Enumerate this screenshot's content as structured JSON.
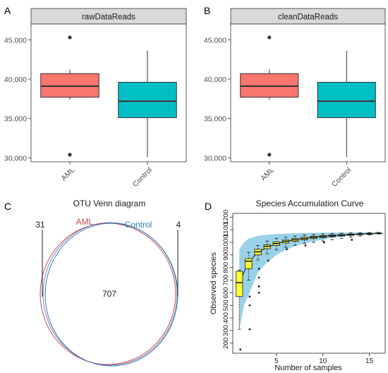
{
  "panel_labels": [
    "A",
    "B",
    "C",
    "D"
  ],
  "chart_data": [
    {
      "type": "box",
      "panel": "A",
      "title": "rawDataReads",
      "categories": [
        "AML",
        "Control"
      ],
      "ylim": [
        29500,
        47000
      ],
      "yticks": [
        "30,000",
        "35,000",
        "40,000",
        "45,000"
      ],
      "ytick_values": [
        30000,
        35000,
        40000,
        45000
      ],
      "boxes": [
        {
          "name": "AML",
          "whisker_low": 37400,
          "q1": 37700,
          "median": 39100,
          "q3": 40700,
          "whisker_high": 41200,
          "outliers": [
            45300,
            30400
          ],
          "color": "#F8766D"
        },
        {
          "name": "Control",
          "whisker_low": 30100,
          "q1": 35100,
          "median": 37200,
          "q3": 39600,
          "whisker_high": 43600,
          "outliers": [],
          "color": "#00BFC4"
        }
      ]
    },
    {
      "type": "box",
      "panel": "B",
      "title": "cleanDataReads",
      "categories": [
        "AML",
        "Control"
      ],
      "ylim": [
        29500,
        47000
      ],
      "yticks": [
        "30,000",
        "35,000",
        "40,000",
        "45,000"
      ],
      "ytick_values": [
        30000,
        35000,
        40000,
        45000
      ],
      "boxes": [
        {
          "name": "AML",
          "whisker_low": 37400,
          "q1": 37700,
          "median": 39100,
          "q3": 40700,
          "whisker_high": 41200,
          "outliers": [
            45300,
            30400
          ],
          "color": "#F8766D"
        },
        {
          "name": "Control",
          "whisker_low": 30100,
          "q1": 35100,
          "median": 37200,
          "q3": 39600,
          "whisker_high": 43600,
          "outliers": [],
          "color": "#00BFC4"
        }
      ]
    },
    {
      "type": "venn",
      "panel": "C",
      "title": "OTU Venn diagram",
      "sets": [
        {
          "name": "AML",
          "only": "31",
          "color": "#c0504d"
        },
        {
          "name": "Control",
          "only": "4",
          "color": "#2e7fb8"
        }
      ],
      "shared": "707"
    },
    {
      "type": "box",
      "panel": "D",
      "title": "Species Accumulation Curve",
      "xlabel": "Number of samples",
      "ylabel": "Observed species",
      "xlim": [
        0.3,
        16.7
      ],
      "ylim": [
        120,
        1230
      ],
      "xticks": [
        5,
        10,
        15
      ],
      "yticks": [
        200,
        300,
        400,
        500,
        600,
        700,
        800,
        900,
        1000,
        1100,
        1200
      ],
      "band_x": [
        1,
        1.5,
        2,
        3,
        4,
        5,
        6,
        7,
        8,
        9,
        10,
        11,
        12,
        13,
        14,
        15,
        16
      ],
      "band_upper": [
        945,
        1000,
        1030,
        1052,
        1060,
        1065,
        1069,
        1072,
        1074,
        1075,
        1076,
        1077,
        1078,
        1078,
        1079,
        1079,
        1080
      ],
      "band_lower": [
        300,
        500,
        580,
        760,
        840,
        900,
        940,
        970,
        990,
        1008,
        1020,
        1035,
        1045,
        1055,
        1062,
        1070,
        1076
      ],
      "mean_curve": [
        680,
        842,
        920,
        960,
        990,
        1008,
        1022,
        1033,
        1041,
        1048,
        1053,
        1058,
        1062,
        1065,
        1068,
        1070
      ],
      "boxes": [
        {
          "x": 1,
          "whisker_low": 310,
          "q1": 570,
          "median": 680,
          "q3": 770,
          "whisker_high": 780,
          "outliers": [
            150
          ]
        },
        {
          "x": 2,
          "whisker_low": 700,
          "q1": 790,
          "median": 850,
          "q3": 870,
          "whisker_high": 920,
          "outliers": [
            570,
            500,
            310
          ]
        },
        {
          "x": 3,
          "whisker_low": 860,
          "q1": 900,
          "median": 925,
          "q3": 945,
          "whisker_high": 975,
          "outliers": [
            790,
            720,
            650,
            600
          ]
        },
        {
          "x": 4,
          "whisker_low": 910,
          "q1": 950,
          "median": 968,
          "q3": 980,
          "whisker_high": 1010,
          "outliers": [
            855
          ]
        },
        {
          "x": 5,
          "whisker_low": 940,
          "q1": 975,
          "median": 990,
          "q3": 1003,
          "whisker_high": 1030,
          "outliers": []
        },
        {
          "x": 6,
          "whisker_low": 960,
          "q1": 995,
          "median": 1008,
          "q3": 1018,
          "whisker_high": 1040,
          "outliers": [
            945
          ]
        },
        {
          "x": 7,
          "whisker_low": 975,
          "q1": 1008,
          "median": 1020,
          "q3": 1030,
          "whisker_high": 1050,
          "outliers": []
        },
        {
          "x": 8,
          "whisker_low": 990,
          "q1": 1020,
          "median": 1030,
          "q3": 1040,
          "whisker_high": 1058,
          "outliers": [
            975
          ]
        },
        {
          "x": 9,
          "whisker_low": 1000,
          "q1": 1030,
          "median": 1040,
          "q3": 1048,
          "whisker_high": 1062,
          "outliers": []
        },
        {
          "x": 10,
          "whisker_low": 1010,
          "q1": 1038,
          "median": 1046,
          "q3": 1054,
          "whisker_high": 1068,
          "outliers": [
            1000
          ]
        },
        {
          "x": 11,
          "whisker_low": 1020,
          "q1": 1045,
          "median": 1052,
          "q3": 1058,
          "whisker_high": 1071,
          "outliers": []
        },
        {
          "x": 12,
          "whisker_low": 1030,
          "q1": 1050,
          "median": 1057,
          "q3": 1062,
          "whisker_high": 1073,
          "outliers": []
        },
        {
          "x": 13,
          "whisker_low": 1040,
          "q1": 1055,
          "median": 1061,
          "q3": 1066,
          "whisker_high": 1075,
          "outliers": [
            1020
          ]
        },
        {
          "x": 14,
          "whisker_low": 1050,
          "q1": 1060,
          "median": 1065,
          "q3": 1069,
          "whisker_high": 1077,
          "outliers": []
        },
        {
          "x": 15,
          "whisker_low": 1058,
          "q1": 1064,
          "median": 1068,
          "q3": 1072,
          "whisker_high": 1078,
          "outliers": []
        },
        {
          "x": 16,
          "whisker_low": 1066,
          "q1": 1069,
          "median": 1071,
          "q3": 1074,
          "whisker_high": 1079,
          "outliers": []
        }
      ],
      "box_color": "#FFFF33",
      "band_color": "#8ecde6"
    }
  ]
}
